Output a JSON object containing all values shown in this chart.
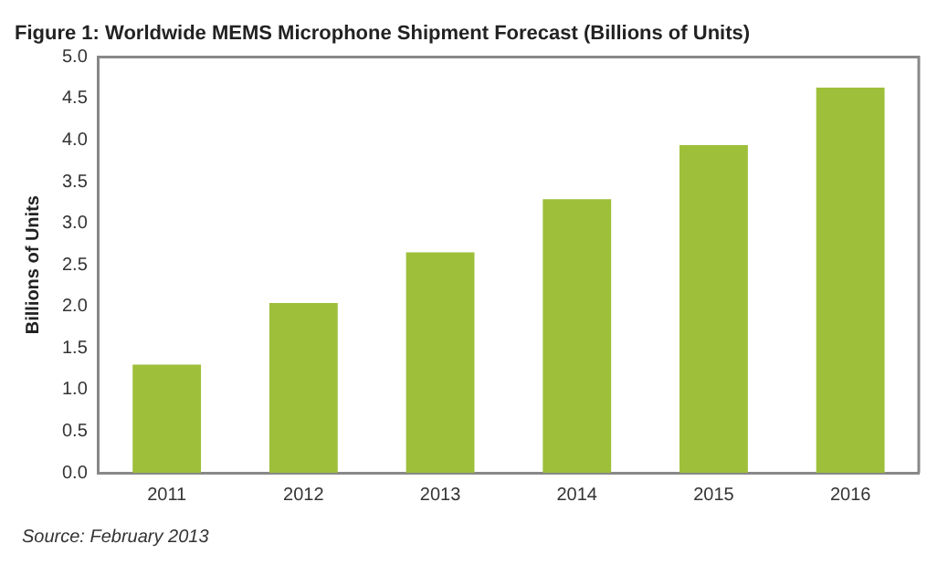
{
  "chart_data": {
    "type": "bar",
    "title": "Figure 1: Worldwide MEMS Microphone Shipment Forecast (Billions of Units)",
    "ylabel": "Billions of Units",
    "categories": [
      "2011",
      "2012",
      "2013",
      "2014",
      "2015",
      "2016"
    ],
    "values": [
      1.3,
      2.04,
      2.65,
      3.29,
      3.94,
      4.63
    ],
    "color": "#9dbf3a",
    "ylim": [
      0,
      5
    ],
    "yticks": [
      {
        "value": 0,
        "label": "0.0"
      },
      0.5,
      {
        "value": 1,
        "label": "1.0"
      },
      1.5,
      {
        "value": 2,
        "label": "2.0"
      },
      2.5,
      {
        "value": 3,
        "label": "3.0"
      },
      3.5,
      {
        "value": 4,
        "label": "4.0"
      },
      4.5,
      {
        "value": 5,
        "label": "5.0"
      }
    ],
    "grid": false,
    "legend": false,
    "annotations": [
      "Source: February 2013"
    ]
  }
}
